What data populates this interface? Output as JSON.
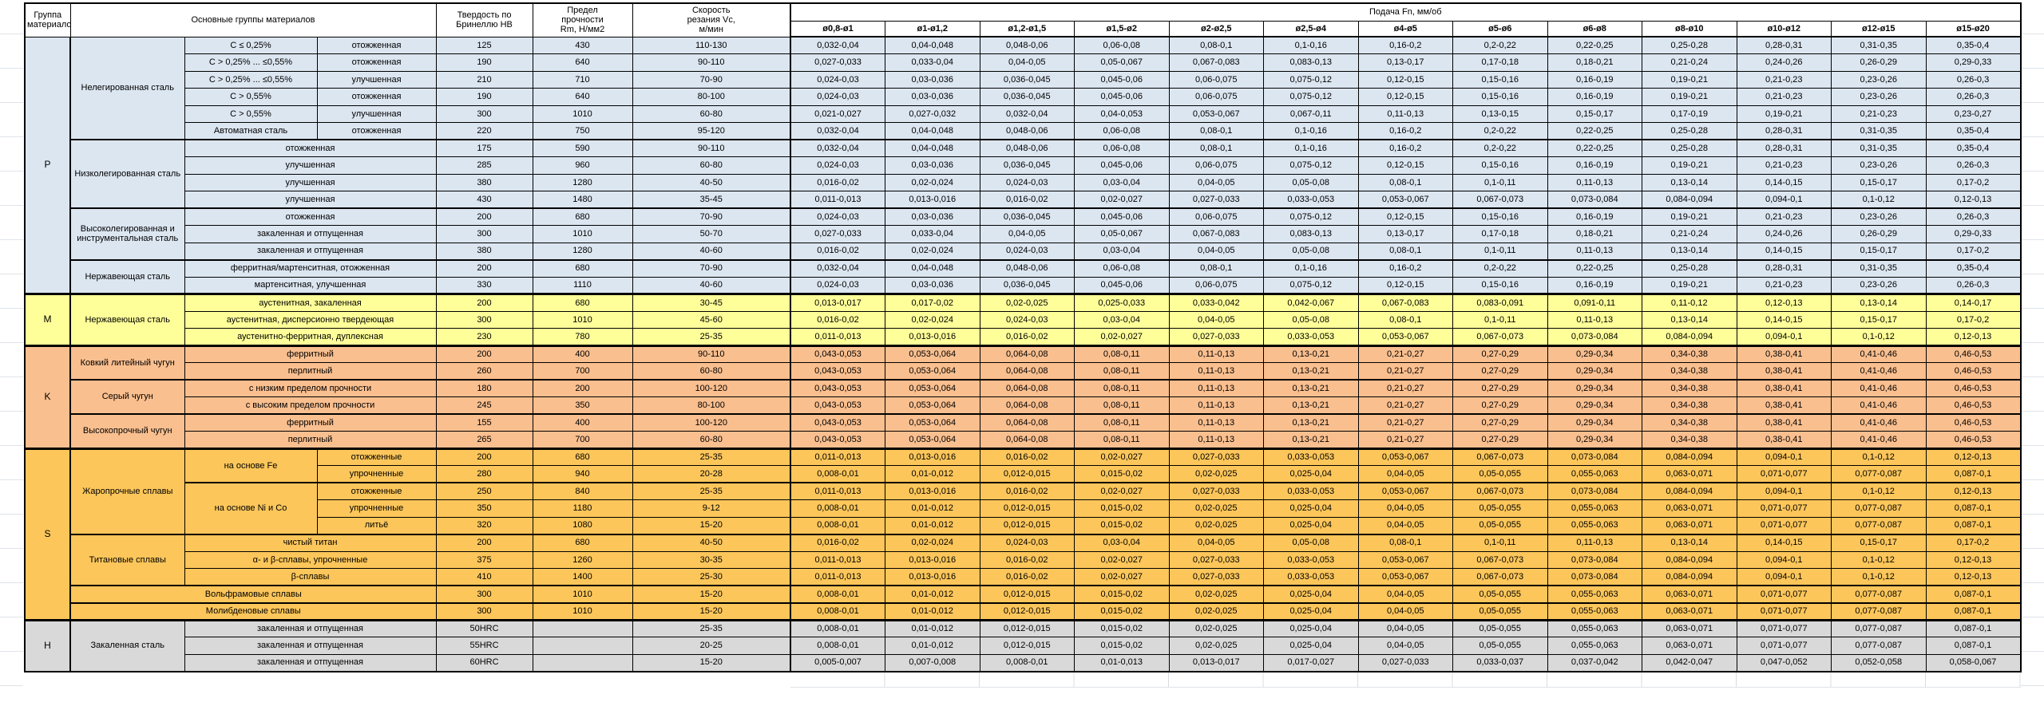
{
  "sheet": {
    "colors": {
      "group_p": "#DCE6F1",
      "group_m": "#FFFF99",
      "group_k": "#FABF8F",
      "group_s": "#FCC65A",
      "group_h": "#D9D9D9",
      "border": "#000000",
      "gridline": "#DFE3E8"
    }
  },
  "header": {
    "group_col": "Группа\nматериалов",
    "materials_col": "Основные группы материалов",
    "hardness_col": "Твердость по\nБринеллю HB",
    "strength_col": "Предел\nпрочности\nRm, Н/мм2",
    "speed_col": "Скорость\nрезания Vc,\nм/мин",
    "feed_title": "Подача Fn, мм/об",
    "feed_cols": [
      "ø0,8-ø1",
      "ø1-ø1,2",
      "ø1,2-ø1,5",
      "ø1,5-ø2",
      "ø2-ø2,5",
      "ø2,5-ø4",
      "ø4-ø5",
      "ø5-ø6",
      "ø6-ø8",
      "ø8-ø10",
      "ø10-ø12",
      "ø12-ø15",
      "ø15-ø20"
    ]
  },
  "feed_patterns": {
    "A": [
      "0,032-0,04",
      "0,04-0,048",
      "0,048-0,06",
      "0,06-0,08",
      "0,08-0,1",
      "0,1-0,16",
      "0,16-0,2",
      "0,2-0,22",
      "0,22-0,25",
      "0,25-0,28",
      "0,28-0,31",
      "0,31-0,35",
      "0,35-0,4"
    ],
    "B": [
      "0,027-0,033",
      "0,033-0,04",
      "0,04-0,05",
      "0,05-0,067",
      "0,067-0,083",
      "0,083-0,13",
      "0,13-0,17",
      "0,17-0,18",
      "0,18-0,21",
      "0,21-0,24",
      "0,24-0,26",
      "0,26-0,29",
      "0,29-0,33"
    ],
    "C": [
      "0,024-0,03",
      "0,03-0,036",
      "0,036-0,045",
      "0,045-0,06",
      "0,06-0,075",
      "0,075-0,12",
      "0,12-0,15",
      "0,15-0,16",
      "0,16-0,19",
      "0,19-0,21",
      "0,21-0,23",
      "0,23-0,26",
      "0,26-0,3"
    ],
    "D": [
      "0,021-0,027",
      "0,027-0,032",
      "0,032-0,04",
      "0,04-0,053",
      "0,053-0,067",
      "0,067-0,11",
      "0,11-0,13",
      "0,13-0,15",
      "0,15-0,17",
      "0,17-0,19",
      "0,19-0,21",
      "0,21-0,23",
      "0,23-0,27"
    ],
    "E": [
      "0,016-0,02",
      "0,02-0,024",
      "0,024-0,03",
      "0,03-0,04",
      "0,04-0,05",
      "0,05-0,08",
      "0,08-0,1",
      "0,1-0,11",
      "0,11-0,13",
      "0,13-0,14",
      "0,14-0,15",
      "0,15-0,17",
      "0,17-0,2"
    ],
    "F": [
      "0,011-0,013",
      "0,013-0,016",
      "0,016-0,02",
      "0,02-0,027",
      "0,027-0,033",
      "0,033-0,053",
      "0,053-0,067",
      "0,067-0,073",
      "0,073-0,084",
      "0,084-0,094",
      "0,094-0,1",
      "0,1-0,12",
      "0,12-0,13"
    ],
    "G": [
      "0,013-0,017",
      "0,017-0,02",
      "0,02-0,025",
      "0,025-0,033",
      "0,033-0,042",
      "0,042-0,067",
      "0,067-0,083",
      "0,083-0,091",
      "0,091-0,11",
      "0,11-0,12",
      "0,12-0,13",
      "0,13-0,14",
      "0,14-0,17"
    ],
    "K": [
      "0,043-0,053",
      "0,053-0,064",
      "0,064-0,08",
      "0,08-0,11",
      "0,11-0,13",
      "0,13-0,21",
      "0,21-0,27",
      "0,27-0,29",
      "0,29-0,34",
      "0,34-0,38",
      "0,38-0,41",
      "0,41-0,46",
      "0,46-0,53"
    ],
    "H8": [
      "0,008-0,01",
      "0,01-0,012",
      "0,012-0,015",
      "0,015-0,02",
      "0,02-0,025",
      "0,025-0,04",
      "0,04-0,05",
      "0,05-0,055",
      "0,055-0,063",
      "0,063-0,071",
      "0,071-0,077",
      "0,077-0,087",
      "0,087-0,1"
    ],
    "Z": [
      "0,005-0,007",
      "0,007-0,008",
      "0,008-0,01",
      "0,01-0,013",
      "0,013-0,017",
      "0,017-0,027",
      "0,027-0,033",
      "0,033-0,037",
      "0,037-0,042",
      "0,042-0,047",
      "0,047-0,052",
      "0,052-0,058",
      "0,058-0,067"
    ]
  },
  "rows": [
    {
      "group_letter": "P",
      "group_span": 15,
      "color": "p",
      "material": "Нелегированная сталь",
      "material_span": 6,
      "subtype": "C ≤ 0,25%",
      "state": "отожженная",
      "hb": "125",
      "rm": "430",
      "vc": "110-130",
      "feed": "A"
    },
    {
      "subtype": "C > 0,25% ... ≤0,55%",
      "state": "отожженная",
      "hb": "190",
      "rm": "640",
      "vc": "90-110",
      "feed": "B"
    },
    {
      "subtype": "C > 0,25% ... ≤0,55%",
      "state": "улучшенная",
      "hb": "210",
      "rm": "710",
      "vc": "70-90",
      "feed": "C"
    },
    {
      "subtype": "C > 0,55%",
      "state": "отожженная",
      "hb": "190",
      "rm": "640",
      "vc": "80-100",
      "feed": "C"
    },
    {
      "subtype": "C > 0,55%",
      "state": "улучшенная",
      "hb": "300",
      "rm": "1010",
      "vc": "60-80",
      "feed": "D"
    },
    {
      "subtype": "Автоматная сталь",
      "state": "отожженная",
      "hb": "220",
      "rm": "750",
      "vc": "95-120",
      "feed": "A"
    },
    {
      "material": "Низколегированная сталь",
      "material_span": 4,
      "substate": "отожженная",
      "hb": "175",
      "rm": "590",
      "vc": "90-110",
      "feed": "A",
      "sep": 2
    },
    {
      "substate": "улучшенная",
      "hb": "285",
      "rm": "960",
      "vc": "60-80",
      "feed": "C"
    },
    {
      "substate": "улучшенная",
      "hb": "380",
      "rm": "1280",
      "vc": "40-50",
      "feed": "E"
    },
    {
      "substate": "улучшенная",
      "hb": "430",
      "rm": "1480",
      "vc": "35-45",
      "feed": "F"
    },
    {
      "material": "Высоколегированная и инструментальная сталь",
      "material_span": 3,
      "substate": "отожженная",
      "hb": "200",
      "rm": "680",
      "vc": "70-90",
      "feed": "C",
      "sep": 2
    },
    {
      "substate": "закаленная и отпущенная",
      "hb": "300",
      "rm": "1010",
      "vc": "50-70",
      "feed": "B"
    },
    {
      "substate": "закаленная и отпущенная",
      "hb": "380",
      "rm": "1280",
      "vc": "40-60",
      "feed": "E"
    },
    {
      "material": "Нержавеющая сталь",
      "material_span": 2,
      "substate": "ферритная/мартенситная, отожженная",
      "hb": "200",
      "rm": "680",
      "vc": "70-90",
      "feed": "A",
      "sep": 2
    },
    {
      "substate": "мартенситная, улучшенная",
      "hb": "330",
      "rm": "1110",
      "vc": "40-60",
      "feed": "C"
    },
    {
      "group_letter": "M",
      "group_span": 3,
      "color": "m",
      "material": "Нержавеющая сталь",
      "material_span": 3,
      "substate": "аустенитная, закаленная",
      "hb": "200",
      "rm": "680",
      "vc": "30-45",
      "feed": "G",
      "sep": 3
    },
    {
      "substate": "аустенитная, дисперсионно твердеющая",
      "hb": "300",
      "rm": "1010",
      "vc": "45-60",
      "feed": "E"
    },
    {
      "substate": "аустенитно-ферритная, дуплексная",
      "hb": "230",
      "rm": "780",
      "vc": "25-35",
      "feed": "F"
    },
    {
      "group_letter": "K",
      "group_span": 6,
      "color": "k",
      "material": "Ковкий литейный чугун",
      "material_span": 2,
      "substate": "ферритный",
      "hb": "200",
      "rm": "400",
      "vc": "90-110",
      "feed": "K",
      "sep": 3
    },
    {
      "substate": "перлитный",
      "hb": "260",
      "rm": "700",
      "vc": "60-80",
      "feed": "K"
    },
    {
      "material": "Серый чугун",
      "material_span": 2,
      "substate": "с низким пределом прочности",
      "hb": "180",
      "rm": "200",
      "vc": "100-120",
      "feed": "K",
      "sep": 2
    },
    {
      "substate": "с высоким пределом прочности",
      "hb": "245",
      "rm": "350",
      "vc": "80-100",
      "feed": "K"
    },
    {
      "material": "Высокопрочный чугун",
      "material_span": 2,
      "substate": "ферритный",
      "hb": "155",
      "rm": "400",
      "vc": "100-120",
      "feed": "K",
      "sep": 2
    },
    {
      "substate": "перлитный",
      "hb": "265",
      "rm": "700",
      "vc": "60-80",
      "feed": "K"
    },
    {
      "group_letter": "S",
      "group_span": 10,
      "color": "s",
      "material": "Жаропрочные сплавы",
      "material_span": 5,
      "subtype": "на основе Fe",
      "subtype_span": 2,
      "state": "отожженные",
      "hb": "200",
      "rm": "680",
      "vc": "25-35",
      "feed": "F",
      "sep": 3
    },
    {
      "state": "упрочненные",
      "hb": "280",
      "rm": "940",
      "vc": "20-28",
      "feed": "H8"
    },
    {
      "subtype": "на основе Ni и Co",
      "subtype_span": 3,
      "state": "отожженные",
      "hb": "250",
      "rm": "840",
      "vc": "25-35",
      "feed": "F",
      "sep": 2
    },
    {
      "state": "упрочненные",
      "hb": "350",
      "rm": "1180",
      "vc": "9-12",
      "feed": "H8"
    },
    {
      "state": "литьё",
      "hb": "320",
      "rm": "1080",
      "vc": "15-20",
      "feed": "H8"
    },
    {
      "material": "Титановые сплавы",
      "material_span": 3,
      "substate": "чистый титан",
      "hb": "200",
      "rm": "680",
      "vc": "40-50",
      "feed": "E",
      "sep": 2
    },
    {
      "substate": "α- и β-сплавы, упрочненные",
      "hb": "375",
      "rm": "1260",
      "vc": "30-35",
      "feed": "F"
    },
    {
      "substate": "β-сплавы",
      "hb": "410",
      "rm": "1400",
      "vc": "25-30",
      "feed": "F"
    },
    {
      "material_full": "Вольфрамовые сплавы",
      "hb": "300",
      "rm": "1010",
      "vc": "15-20",
      "feed": "H8",
      "sep": 2
    },
    {
      "material_full": "Молибденовые сплавы",
      "hb": "300",
      "rm": "1010",
      "vc": "15-20",
      "feed": "H8",
      "sep": 2
    },
    {
      "group_letter": "H",
      "group_span": 3,
      "color": "h",
      "material": "Закаленная сталь",
      "material_span": 3,
      "substate": "закаленная и отпущенная",
      "hb": "50HRC",
      "rm": "",
      "vc": "25-35",
      "feed": "H8",
      "sep": 3
    },
    {
      "substate": "закаленная и отпущенная",
      "hb": "55HRC",
      "rm": "",
      "vc": "20-25",
      "feed": "H8"
    },
    {
      "substate": "закаленная и отпущенная",
      "hb": "60HRC",
      "rm": "",
      "vc": "15-20",
      "feed": "Z"
    }
  ]
}
